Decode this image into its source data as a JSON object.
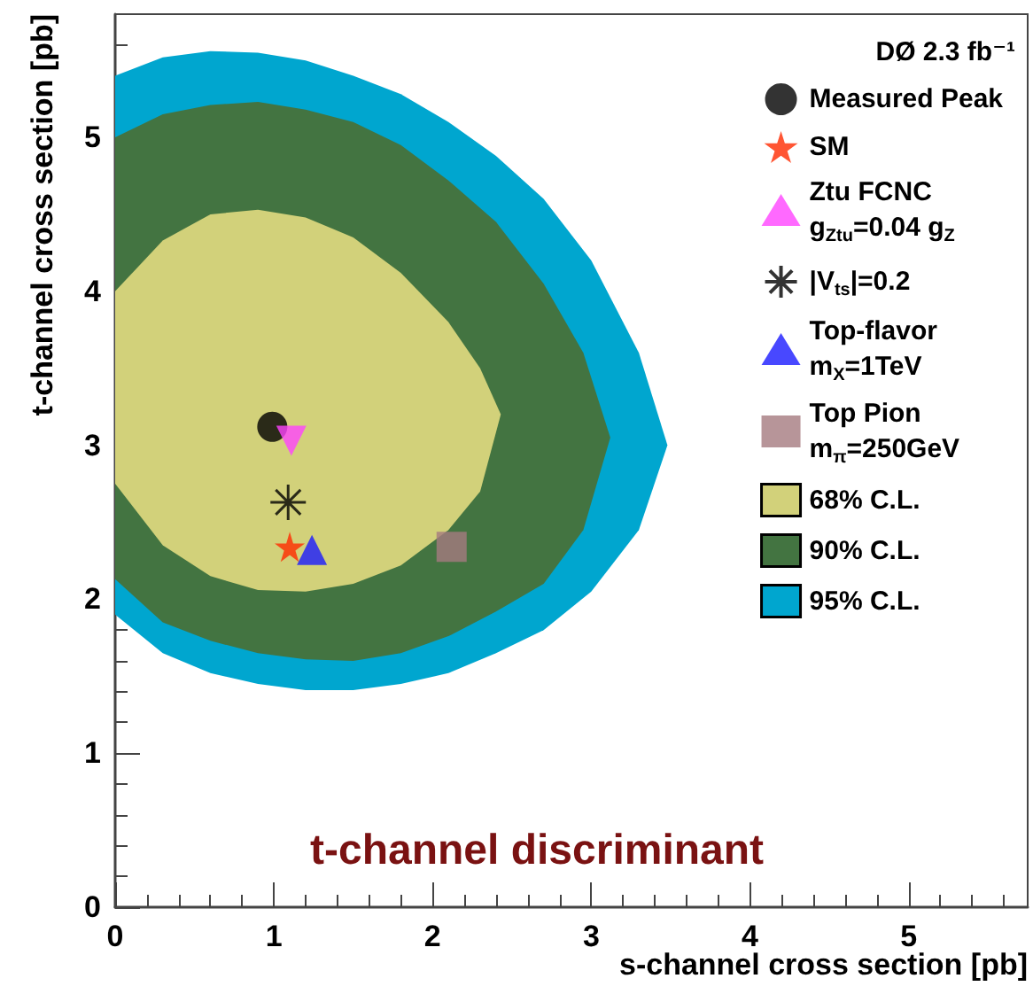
{
  "chart_data": {
    "type": "scatter",
    "xlabel": "s-channel cross section [pb]",
    "ylabel": "t-channel cross section [pb]",
    "legend_title": "DØ 2.3 fb⁻¹",
    "annotations": [
      "t-channel discriminant"
    ],
    "xlim": [
      0,
      5.75
    ],
    "xticks": [
      0,
      1,
      2,
      3,
      4,
      5
    ],
    "ylim": [
      0,
      5.8
    ],
    "yticks": [
      0,
      1,
      2,
      3,
      4,
      5
    ],
    "grid": false,
    "legend": "top right",
    "series": [
      {
        "name": "Measured Peak",
        "color": "#000000",
        "marker": "circle",
        "x": [
          0.99
        ],
        "values": [
          3.12
        ]
      },
      {
        "name": "SM",
        "color": "#ff2a00",
        "marker": "star",
        "x": [
          1.1
        ],
        "values": [
          2.34
        ]
      },
      {
        "name": "Ztu FCNC\ng$_{Ztu}$=0.04 g$_{Z}$",
        "color": "#ff44ff",
        "marker": "triangle-down",
        "x": [
          1.11
        ],
        "values": [
          3.03
        ]
      },
      {
        "name": "|V$_{ts}$|=0.2",
        "color": "#000000",
        "marker": "cross",
        "x": [
          1.09
        ],
        "values": [
          2.63
        ]
      },
      {
        "name": "Top-flavor\nm$_{X}$=1TeV",
        "color": "#1a1aff",
        "marker": "triangle",
        "x": [
          1.24
        ],
        "values": [
          2.32
        ]
      },
      {
        "name": "Top Pion\nm$_{π}$=250GeV",
        "color": "#a57b80",
        "marker": "square",
        "x": [
          2.12
        ],
        "values": [
          2.34
        ]
      },
      {
        "name": "68% C.L.",
        "type": "area",
        "color": "#d2d17a",
        "x": [
          0,
          0.3,
          0.6,
          0.9,
          1.2,
          1.5,
          1.8,
          2.1,
          2.3,
          2.43,
          2.3,
          2.1,
          1.8,
          1.5,
          1.2,
          0.9,
          0.6,
          0.3,
          0
        ],
        "values": [
          4.0,
          4.33,
          4.5,
          4.53,
          4.48,
          4.35,
          4.12,
          3.8,
          3.5,
          3.2,
          2.7,
          2.45,
          2.22,
          2.1,
          2.05,
          2.06,
          2.15,
          2.35,
          2.75
        ]
      },
      {
        "name": "90% C.L.",
        "type": "area",
        "color": "#437441",
        "x": [
          0,
          0.3,
          0.6,
          0.9,
          1.2,
          1.5,
          1.8,
          2.1,
          2.4,
          2.7,
          2.95,
          3.12,
          2.95,
          2.7,
          2.4,
          2.1,
          1.8,
          1.5,
          1.2,
          0.9,
          0.6,
          0.3,
          0
        ],
        "values": [
          5.0,
          5.15,
          5.21,
          5.23,
          5.18,
          5.1,
          4.95,
          4.72,
          4.45,
          4.05,
          3.6,
          3.05,
          2.45,
          2.1,
          1.92,
          1.76,
          1.65,
          1.6,
          1.61,
          1.65,
          1.73,
          1.85,
          2.13
        ]
      },
      {
        "name": "95% C.L.",
        "type": "area",
        "color": "#00a6cf",
        "x": [
          0,
          0.3,
          0.6,
          0.9,
          1.2,
          1.5,
          1.8,
          2.1,
          2.4,
          2.7,
          3.0,
          3.3,
          3.48,
          3.3,
          3.0,
          2.7,
          2.4,
          2.1,
          1.8,
          1.5,
          1.2,
          0.9,
          0.6,
          0.3,
          0
        ],
        "values": [
          5.4,
          5.52,
          5.56,
          5.55,
          5.5,
          5.4,
          5.28,
          5.1,
          4.88,
          4.6,
          4.2,
          3.6,
          3.0,
          2.45,
          2.05,
          1.8,
          1.65,
          1.52,
          1.45,
          1.41,
          1.41,
          1.45,
          1.52,
          1.65,
          1.9
        ]
      }
    ]
  }
}
